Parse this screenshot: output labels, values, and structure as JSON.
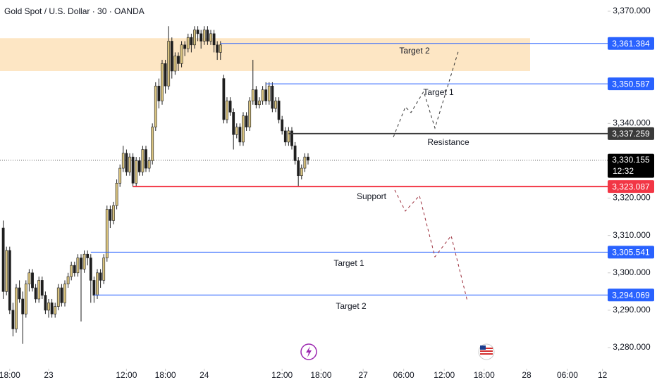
{
  "chart_data": {
    "type": "candlestick",
    "title": "Gold Spot / U.S. Dollar · 30 · OANDA",
    "up_color": "#d8c27e",
    "down_color": "#1e1e1e",
    "ohlc": [
      [
        3312,
        3314,
        3293,
        3295
      ],
      [
        3295,
        3307,
        3294,
        3306
      ],
      [
        3306,
        3307,
        3289,
        3290
      ],
      [
        3290,
        3292,
        3283,
        3285
      ],
      [
        3285,
        3297,
        3284,
        3296
      ],
      [
        3296,
        3298,
        3292,
        3293
      ],
      [
        3293,
        3295,
        3281,
        3289
      ],
      [
        3289,
        3298,
        3288,
        3297
      ],
      [
        3297,
        3301,
        3295,
        3300
      ],
      [
        3300,
        3301,
        3295,
        3296
      ],
      [
        3296,
        3297,
        3292,
        3293
      ],
      [
        3293,
        3299,
        3292,
        3298
      ],
      [
        3298,
        3299,
        3293,
        3294
      ],
      [
        3294,
        3295,
        3289,
        3290
      ],
      [
        3290,
        3293,
        3288,
        3292
      ],
      [
        3292,
        3293,
        3288,
        3289
      ],
      [
        3289,
        3292,
        3288,
        3291
      ],
      [
        3291,
        3297,
        3290,
        3296
      ],
      [
        3296,
        3297,
        3291,
        3292
      ],
      [
        3292,
        3298,
        3291,
        3297
      ],
      [
        3297,
        3300,
        3296,
        3299
      ],
      [
        3299,
        3303,
        3298,
        3302
      ],
      [
        3302,
        3303,
        3299,
        3300
      ],
      [
        3300,
        3305,
        3299,
        3304
      ],
      [
        3304,
        3305,
        3287,
        3301
      ],
      [
        3301,
        3306,
        3300,
        3305
      ],
      [
        3305,
        3306,
        3302,
        3304
      ],
      [
        3304,
        3305,
        3292,
        3298
      ],
      [
        3298,
        3299,
        3292,
        3294
      ],
      [
        3294,
        3301,
        3293,
        3300
      ],
      [
        3300,
        3301,
        3296,
        3298
      ],
      [
        3298,
        3305,
        3297,
        3304
      ],
      [
        3304,
        3318,
        3303,
        3317
      ],
      [
        3317,
        3318,
        3312,
        3314
      ],
      [
        3314,
        3319,
        3313,
        3318
      ],
      [
        3318,
        3325,
        3317,
        3324
      ],
      [
        3324,
        3329,
        3323,
        3328
      ],
      [
        3328,
        3334,
        3327,
        3332
      ],
      [
        3332,
        3333,
        3326,
        3327
      ],
      [
        3327,
        3332,
        3326,
        3331
      ],
      [
        3331,
        3332,
        3323,
        3324
      ],
      [
        3324,
        3331,
        3323,
        3330
      ],
      [
        3330,
        3331,
        3326,
        3327
      ],
      [
        3327,
        3334,
        3326,
        3333
      ],
      [
        3333,
        3334,
        3327,
        3328
      ],
      [
        3328,
        3331,
        3327,
        3330
      ],
      [
        3330,
        3340,
        3329,
        3339
      ],
      [
        3339,
        3351,
        3338,
        3350
      ],
      [
        3350,
        3352,
        3344,
        3346
      ],
      [
        3346,
        3357,
        3345,
        3356
      ],
      [
        3356,
        3357,
        3348,
        3350
      ],
      [
        3350,
        3366,
        3349,
        3362
      ],
      [
        3362,
        3363,
        3352,
        3354
      ],
      [
        3354,
        3359,
        3353,
        3358
      ],
      [
        3358,
        3359,
        3354,
        3356
      ],
      [
        3356,
        3362,
        3355,
        3361
      ],
      [
        3361,
        3362,
        3358,
        3360
      ],
      [
        3360,
        3364,
        3359,
        3363
      ],
      [
        3363,
        3364,
        3359,
        3361
      ],
      [
        3361,
        3366,
        3360,
        3365
      ],
      [
        3365,
        3366,
        3362,
        3364
      ],
      [
        3364,
        3365,
        3360,
        3362
      ],
      [
        3362,
        3366,
        3361,
        3365
      ],
      [
        3365,
        3366,
        3361,
        3362
      ],
      [
        3362,
        3365,
        3361,
        3364
      ],
      [
        3364,
        3365,
        3359,
        3361
      ],
      [
        3361,
        3362,
        3357,
        3359
      ],
      [
        3359,
        3362,
        3357,
        3361
      ],
      [
        3352,
        3353,
        3340,
        3341
      ],
      [
        3341,
        3347,
        3340,
        3346
      ],
      [
        3346,
        3347,
        3342,
        3343
      ],
      [
        3343,
        3344,
        3333,
        3337
      ],
      [
        3337,
        3340,
        3336,
        3339
      ],
      [
        3339,
        3340,
        3334,
        3335
      ],
      [
        3335,
        3343,
        3334,
        3342
      ],
      [
        3342,
        3343,
        3338,
        3339
      ],
      [
        3339,
        3347,
        3338,
        3346
      ],
      [
        3346,
        3357,
        3345,
        3349
      ],
      [
        3349,
        3350,
        3344,
        3345
      ],
      [
        3345,
        3347,
        3344,
        3346
      ],
      [
        3346,
        3350,
        3345,
        3349
      ],
      [
        3349,
        3351,
        3345,
        3346
      ],
      [
        3346,
        3351,
        3345,
        3350
      ],
      [
        3350,
        3351,
        3343,
        3344
      ],
      [
        3344,
        3347,
        3343,
        3346
      ],
      [
        3346,
        3347,
        3340,
        3341
      ],
      [
        3341,
        3342,
        3337,
        3338
      ],
      [
        3338,
        3339,
        3334,
        3335
      ],
      [
        3335,
        3339,
        3334,
        3338
      ],
      [
        3338,
        3339,
        3333,
        3334
      ],
      [
        3334,
        3335,
        3329,
        3330
      ],
      [
        3330,
        3331,
        3323,
        3326
      ],
      [
        3326,
        3329,
        3325,
        3328
      ],
      [
        3328,
        3332,
        3327,
        3331
      ],
      [
        3331,
        3332,
        3329,
        3330.155
      ]
    ],
    "xlim": [
      -1,
      186.4
    ],
    "xticks": [
      {
        "value": 2,
        "label": "18:00"
      },
      {
        "value": 14,
        "label": "23"
      },
      {
        "value": 38,
        "label": "12:00"
      },
      {
        "value": 50,
        "label": "18:00"
      },
      {
        "value": 62,
        "label": "24"
      },
      {
        "value": 86,
        "label": "12:00"
      },
      {
        "value": 98,
        "label": "18:00"
      },
      {
        "value": 111,
        "label": "27"
      },
      {
        "value": 123.5,
        "label": "06:00"
      },
      {
        "value": 136,
        "label": "12:00"
      },
      {
        "value": 148.3,
        "label": "18:00"
      },
      {
        "value": 161.4,
        "label": "28"
      },
      {
        "value": 174,
        "label": "06:00"
      },
      {
        "value": 184.8,
        "label": "12"
      }
    ],
    "ylim": [
      3280,
      3370
    ],
    "yticks": [
      {
        "value": 3370,
        "label": "3,370.000"
      },
      {
        "value": 3340,
        "label": "3,340.000"
      },
      {
        "value": 3320,
        "label": "3,320.000"
      },
      {
        "value": 3310,
        "label": "3,310.000"
      },
      {
        "value": 3300,
        "label": "3,300.000"
      },
      {
        "value": 3290,
        "label": "3,290.000"
      },
      {
        "value": 3280,
        "label": "3,280.000"
      }
    ],
    "zone": {
      "ylim": [
        3354,
        3362.8
      ],
      "color": "#fde6c4"
    },
    "levels": [
      {
        "label": "Target 2",
        "value": 3361.384,
        "value_label": "3,361.384",
        "from": 67,
        "color": "#2962ff"
      },
      {
        "label": "Target 1",
        "value": 3350.587,
        "value_label": "3,350.587",
        "from": 81,
        "color": "#2962ff"
      },
      {
        "label": "Resistance",
        "value": 3337.259,
        "value_label": "3,337.259",
        "from": 88,
        "color": "#3a3a3a"
      },
      {
        "label": "Support",
        "value": 3323.087,
        "value_label": "3,323.087",
        "from": 40,
        "color": "#f23645"
      },
      {
        "label": "Target 1",
        "value": 3305.541,
        "value_label": "3,305.541",
        "from": 27,
        "color": "#2962ff"
      },
      {
        "label": "Target 2",
        "value": 3294.069,
        "value_label": "3,294.069",
        "from": 28,
        "color": "#2962ff"
      }
    ],
    "last_price": {
      "value": 3330.155,
      "label": "3,330.155",
      "countdown": "12:32"
    }
  }
}
